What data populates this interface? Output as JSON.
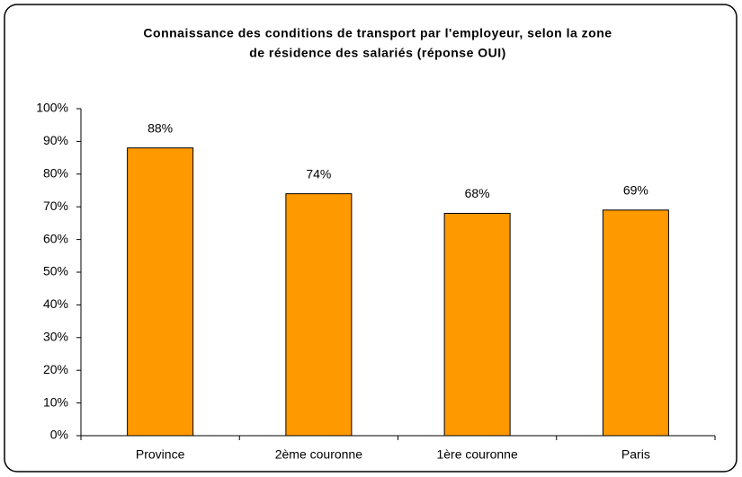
{
  "chart_data": {
    "type": "bar",
    "title": [
      "Connaissance des conditions de transport par l'employeur, selon la zone",
      "de résidence des salariés (réponse OUI)"
    ],
    "categories": [
      "Province",
      "2ème couronne",
      "1ère couronne",
      "Paris"
    ],
    "values": [
      88,
      74,
      68,
      69
    ],
    "value_labels": [
      "88%",
      "74%",
      "68%",
      "69%"
    ],
    "color": "#ff9900",
    "ylim": [
      0,
      100
    ],
    "yticks": [
      {
        "value": 0,
        "label": "0%"
      },
      {
        "value": 10,
        "label": "10%"
      },
      {
        "value": 20,
        "label": "20%"
      },
      {
        "value": 30,
        "label": "30%"
      },
      {
        "value": 40,
        "label": "40%"
      },
      {
        "value": 50,
        "label": "50%"
      },
      {
        "value": 60,
        "label": "60%"
      },
      {
        "value": 70,
        "label": "70%"
      },
      {
        "value": 80,
        "label": "80%"
      },
      {
        "value": 90,
        "label": "90%"
      },
      {
        "value": 100,
        "label": "100%"
      }
    ],
    "grid": false
  }
}
